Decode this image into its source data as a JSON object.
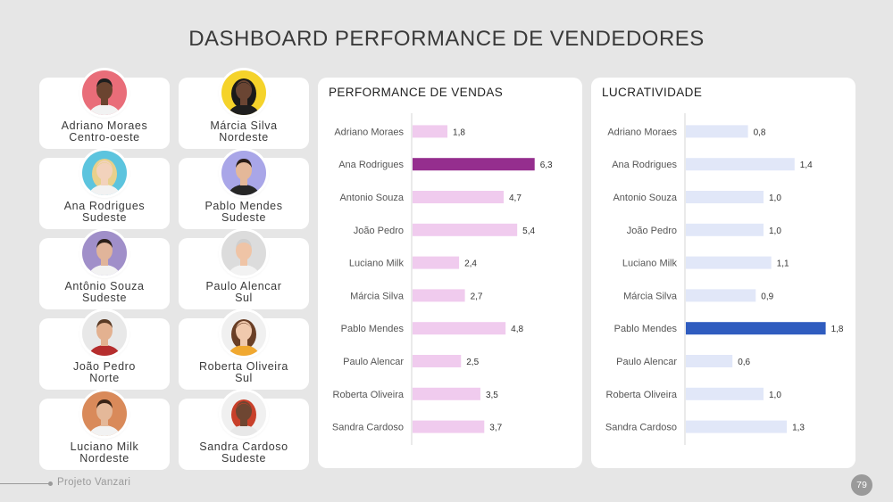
{
  "title": "DASHBOARD PERFORMANCE DE VENDEDORES",
  "footer": {
    "text": "Projeto Vanzari",
    "page": "79"
  },
  "people": [
    {
      "name": "Adriano Moraes",
      "region": "Centro-oeste",
      "avatar": "avatar-man-icon",
      "bg": "#e96d79",
      "skin": "#6b4430",
      "hair": "#1e1e1e",
      "shirt": "#f2f2f2"
    },
    {
      "name": "Márcia Silva",
      "region": "Nordeste",
      "avatar": "avatar-woman-icon",
      "bg": "#f5d32a",
      "skin": "#6a4533",
      "hair": "#1a1a1a",
      "shirt": "#1e1e1e"
    },
    {
      "name": "Ana Rodrigues",
      "region": "Sudeste",
      "avatar": "avatar-woman-icon",
      "bg": "#5cc4de",
      "skin": "#f2d2bc",
      "hair": "#e8d08c",
      "shirt": "#f2f2f2"
    },
    {
      "name": "Pablo Mendes",
      "region": "Sudeste",
      "avatar": "avatar-man-icon",
      "bg": "#a9a6e8",
      "skin": "#e4b899",
      "hair": "#2a1d16",
      "shirt": "#262626"
    },
    {
      "name": "Antônio Souza",
      "region": "Sudeste",
      "avatar": "avatar-man-icon",
      "bg": "#a08fc9",
      "skin": "#e0b49a",
      "hair": "#2b1f18",
      "shirt": "#f2f2f2"
    },
    {
      "name": "Paulo Alencar",
      "region": "Sul",
      "avatar": "avatar-man-icon",
      "bg": "#dcdcdc",
      "skin": "#efc4a6",
      "hair": "#cfcfcf",
      "shirt": "#f2f2f2"
    },
    {
      "name": "João Pedro",
      "region": "Norte",
      "avatar": "avatar-man-icon",
      "bg": "#e8e8e8",
      "skin": "#e3b190",
      "hair": "#5a3a24",
      "shirt": "#b52d2d"
    },
    {
      "name": "Roberta Oliveira",
      "region": "Sul",
      "avatar": "avatar-woman-icon",
      "bg": "#f0f0f0",
      "skin": "#f0c9ad",
      "hair": "#6a3f26",
      "shirt": "#f0a830"
    },
    {
      "name": "Luciano Milk",
      "region": "Nordeste",
      "avatar": "avatar-man-icon",
      "bg": "#d98a5a",
      "skin": "#e4b899",
      "hair": "#3a2417",
      "shirt": "#f2f2f2"
    },
    {
      "name": "Sandra Cardoso",
      "region": "Sudeste",
      "avatar": "avatar-woman-icon",
      "bg": "#f0f0f0",
      "skin": "#6e4632",
      "hair": "#c8402a",
      "shirt": "#e8e8e8"
    }
  ],
  "chart_data": [
    {
      "type": "bar",
      "orientation": "horizontal",
      "title": "PERFORMANCE DE VENDAS",
      "categories": [
        "Adriano Moraes",
        "Ana Rodrigues",
        "Antonio Souza",
        "João Pedro",
        "Luciano Milk",
        "Márcia Silva",
        "Pablo Mendes",
        "Paulo Alencar",
        "Roberta Oliveira",
        "Sandra Cardoso"
      ],
      "values": [
        1.8,
        6.3,
        4.7,
        5.4,
        2.4,
        2.7,
        4.8,
        2.5,
        3.5,
        3.7
      ],
      "labels": [
        "1,8",
        "6,3",
        "4,7",
        "5,4",
        "2,4",
        "2,7",
        "4,8",
        "2,5",
        "3,5",
        "3,7"
      ],
      "color": "#f0cbee",
      "highlight_index": 1,
      "highlight_color": "#952e8e",
      "grid": false
    },
    {
      "type": "bar",
      "orientation": "horizontal",
      "title": "LUCRATIVIDADE",
      "categories": [
        "Adriano Moraes",
        "Ana Rodrigues",
        "Antonio Souza",
        "João Pedro",
        "Luciano Milk",
        "Márcia Silva",
        "Pablo Mendes",
        "Paulo Alencar",
        "Roberta Oliveira",
        "Sandra Cardoso"
      ],
      "values": [
        0.8,
        1.4,
        1.0,
        1.0,
        1.1,
        0.9,
        1.8,
        0.6,
        1.0,
        1.3
      ],
      "labels": [
        "0,8",
        "1,4",
        "1,0",
        "1,0",
        "1,1",
        "0,9",
        "1,8",
        "0,6",
        "1,0",
        "1,3"
      ],
      "color": "#e1e7f8",
      "highlight_index": 6,
      "highlight_color": "#2f5cbf",
      "grid": false
    }
  ]
}
